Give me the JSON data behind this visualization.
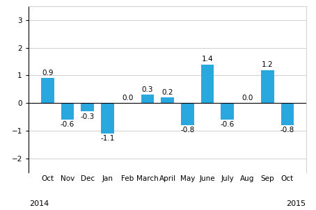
{
  "categories": [
    "Oct",
    "Nov",
    "Dec",
    "Jan",
    "Feb",
    "March",
    "April",
    "May",
    "June",
    "July",
    "Aug",
    "Sep",
    "Oct"
  ],
  "values": [
    0.9,
    -0.6,
    -0.3,
    -1.1,
    0.0,
    0.3,
    0.2,
    -0.8,
    1.4,
    -0.6,
    0.0,
    1.2,
    -0.8
  ],
  "bar_color": "#29a8e0",
  "ylim": [
    -2.5,
    3.5
  ],
  "yticks": [
    -2,
    -1,
    0,
    1,
    2,
    3
  ],
  "label_2014": "2014",
  "label_2015": "2015",
  "background_color": "#ffffff",
  "grid_color": "#c8c8c8",
  "label_fontsize": 7.5,
  "value_fontsize": 7.5,
  "year_fontsize": 8
}
